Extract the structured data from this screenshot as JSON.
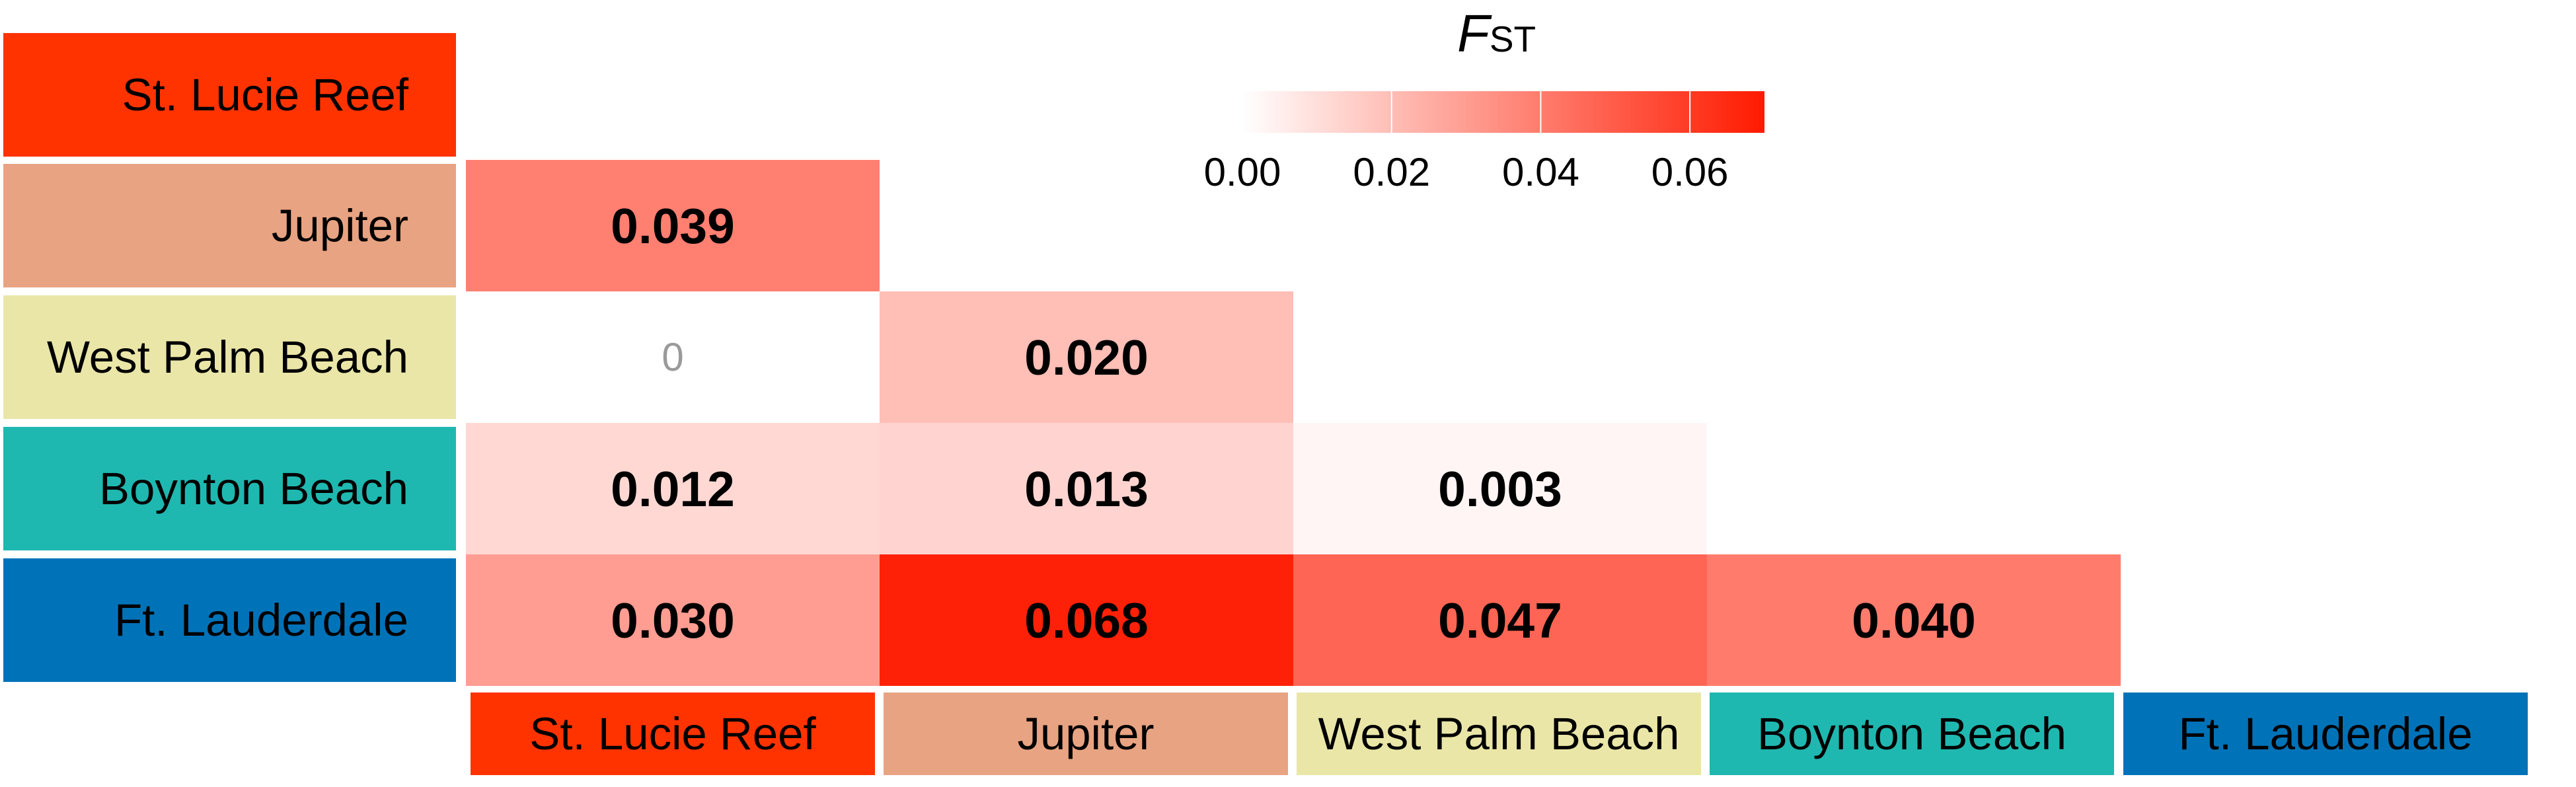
{
  "chart_data": {
    "type": "heatmap",
    "populations": [
      "St. Lucie Reef",
      "Jupiter",
      "West Palm Beach",
      "Boynton Beach",
      "Ft. Lauderdale"
    ],
    "population_colors": [
      "#ff3300",
      "#e8a382",
      "#eae6a8",
      "#1fb8b0",
      "#0073b8"
    ],
    "row_labels": [
      "St. Lucie Reef",
      "Jupiter",
      "West Palm Beach",
      "Boynton Beach",
      "Ft. Lauderdale"
    ],
    "column_labels": [
      "St. Lucie Reef",
      "Jupiter",
      "West Palm Beach",
      "Boynton Beach",
      "Ft. Lauderdale"
    ],
    "cells": [
      {
        "row": "Jupiter",
        "col": "St. Lucie Reef",
        "value": 0.039,
        "label": "0.039"
      },
      {
        "row": "West Palm Beach",
        "col": "St. Lucie Reef",
        "value": 0,
        "label": "0"
      },
      {
        "row": "West Palm Beach",
        "col": "Jupiter",
        "value": 0.02,
        "label": "0.020"
      },
      {
        "row": "Boynton Beach",
        "col": "St. Lucie Reef",
        "value": 0.012,
        "label": "0.012"
      },
      {
        "row": "Boynton Beach",
        "col": "Jupiter",
        "value": 0.013,
        "label": "0.013"
      },
      {
        "row": "Boynton Beach",
        "col": "West Palm Beach",
        "value": 0.003,
        "label": "0.003"
      },
      {
        "row": "Ft. Lauderdale",
        "col": "St. Lucie Reef",
        "value": 0.03,
        "label": "0.030"
      },
      {
        "row": "Ft. Lauderdale",
        "col": "Jupiter",
        "value": 0.068,
        "label": "0.068"
      },
      {
        "row": "Ft. Lauderdale",
        "col": "West Palm Beach",
        "value": 0.047,
        "label": "0.047"
      },
      {
        "row": "Ft. Lauderdale",
        "col": "Boynton Beach",
        "value": 0.04,
        "label": "0.040"
      }
    ],
    "colorscale": {
      "title_main": "F",
      "title_sub": "ST",
      "min": 0,
      "max": 0.07,
      "low_color": "#ffffff",
      "high_color": "#ff1a00",
      "ticks": [
        0.0,
        0.02,
        0.04,
        0.06
      ],
      "tick_labels": [
        "0.00",
        "0.02",
        "0.04",
        "0.06"
      ]
    },
    "legend_position": "top-center",
    "grid": false
  }
}
